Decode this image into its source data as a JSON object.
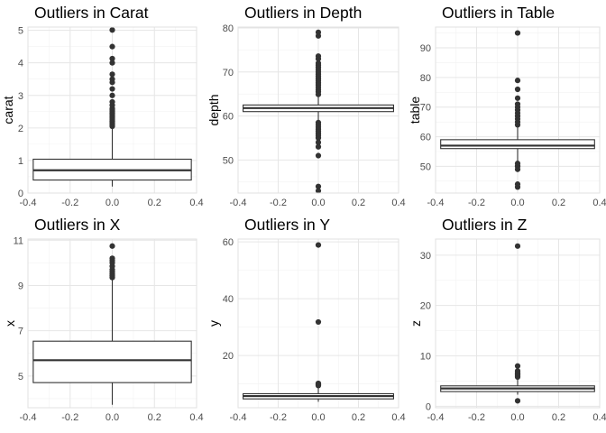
{
  "chart_data": [
    {
      "type": "boxplot",
      "title": "Outliers in Carat",
      "xlabel": "",
      "ylabel": "carat",
      "xlim": [
        -0.4,
        0.4
      ],
      "xticks": [
        -0.4,
        -0.2,
        0.0,
        0.2,
        0.4
      ],
      "xtick_labels": [
        "-0.4",
        "-0.2",
        "0.0",
        "0.2",
        "0.4"
      ],
      "ylim": [
        0,
        5.1
      ],
      "yticks": [
        0,
        1,
        2,
        3,
        4,
        5
      ],
      "ytick_labels": [
        "0",
        "1",
        "2",
        "3",
        "4",
        "5"
      ],
      "box": {
        "whisker_low": 0.2,
        "q1": 0.4,
        "median": 0.7,
        "q3": 1.04,
        "whisker_high": 2.0
      },
      "outliers": [
        2.05,
        2.1,
        2.15,
        2.2,
        2.25,
        2.3,
        2.35,
        2.4,
        2.45,
        2.5,
        2.55,
        2.6,
        2.7,
        2.8,
        3.0,
        3.2,
        3.4,
        3.5,
        3.65,
        4.0,
        4.13,
        4.5,
        5.01
      ],
      "grid": true
    },
    {
      "type": "boxplot",
      "title": "Outliers in Depth",
      "xlabel": "",
      "ylabel": "depth",
      "xlim": [
        -0.4,
        0.4
      ],
      "xticks": [
        -0.4,
        -0.2,
        0.0,
        0.2,
        0.4
      ],
      "xtick_labels": [
        "-0.4",
        "-0.2",
        "0.0",
        "0.2",
        "0.4"
      ],
      "ylim": [
        42.5,
        80.2
      ],
      "yticks": [
        50,
        60,
        70,
        80
      ],
      "ytick_labels": [
        "50",
        "60",
        "70",
        "80"
      ],
      "box": {
        "whisker_low": 58.8,
        "q1": 61.0,
        "median": 61.8,
        "q3": 62.5,
        "whisker_high": 64.7
      },
      "outliers": [
        43.0,
        44.0,
        51.0,
        53.0,
        54.0,
        55.0,
        55.5,
        56.0,
        56.5,
        57.0,
        57.5,
        58.0,
        58.5,
        64.9,
        65.5,
        66.0,
        66.5,
        67.0,
        67.5,
        68.0,
        68.5,
        69.0,
        69.5,
        70.0,
        70.5,
        71.0,
        71.5,
        72.0,
        73.0,
        73.6,
        78.2,
        79.0
      ],
      "grid": true
    },
    {
      "type": "boxplot",
      "title": "Outliers in Table",
      "xlabel": "",
      "ylabel": "table",
      "xlim": [
        -0.4,
        0.4
      ],
      "xticks": [
        -0.4,
        -0.2,
        0.0,
        0.2,
        0.4
      ],
      "xtick_labels": [
        "-0.4",
        "-0.2",
        "0.0",
        "0.2",
        "0.4"
      ],
      "ylim": [
        41,
        97
      ],
      "yticks": [
        50,
        60,
        70,
        80,
        90
      ],
      "ytick_labels": [
        "50",
        "60",
        "70",
        "80",
        "90"
      ],
      "box": {
        "whisker_low": 51.6,
        "q1": 56.0,
        "median": 57.0,
        "q3": 59.0,
        "whisker_high": 63.5
      },
      "outliers": [
        43.0,
        44.0,
        49.0,
        50.0,
        50.1,
        51.0,
        64.0,
        65.0,
        66.0,
        67.0,
        68.0,
        69.0,
        70.0,
        71.0,
        73.0,
        76.0,
        79.0,
        95.0
      ],
      "grid": true
    },
    {
      "type": "boxplot",
      "title": "Outliers in X",
      "xlabel": "",
      "ylabel": "x",
      "xlim": [
        -0.4,
        0.4
      ],
      "xticks": [
        -0.4,
        -0.2,
        0.0,
        0.2,
        0.4
      ],
      "xtick_labels": [
        "-0.4",
        "-0.2",
        "0.0",
        "0.2",
        "0.4"
      ],
      "ylim": [
        3.6,
        11.05
      ],
      "yticks": [
        5,
        7,
        9,
        11
      ],
      "ytick_labels": [
        "5",
        "7",
        "9",
        "11"
      ],
      "box": {
        "whisker_low": 3.73,
        "q1": 4.71,
        "median": 5.7,
        "q3": 6.54,
        "whisker_high": 9.28
      },
      "outliers": [
        9.35,
        9.42,
        9.5,
        9.6,
        9.7,
        9.85,
        10.0,
        10.1,
        10.2,
        10.74
      ],
      "grid": true
    },
    {
      "type": "boxplot",
      "title": "Outliers in Y",
      "xlabel": "",
      "ylabel": "y",
      "xlim": [
        -0.4,
        0.4
      ],
      "xticks": [
        -0.4,
        -0.2,
        0.0,
        0.2,
        0.4
      ],
      "xtick_labels": [
        "-0.4",
        "-0.2",
        "0.0",
        "0.2",
        "0.4"
      ],
      "ylim": [
        1.6,
        61
      ],
      "yticks": [
        20,
        40,
        60
      ],
      "ytick_labels": [
        "20",
        "40",
        "60"
      ],
      "box": {
        "whisker_low": 3.7,
        "q1": 4.72,
        "median": 5.71,
        "q3": 6.54,
        "whisker_high": 9.27
      },
      "outliers": [
        9.4,
        9.6,
        9.8,
        10.0,
        10.2,
        31.8,
        58.9
      ],
      "grid": true
    },
    {
      "type": "boxplot",
      "title": "Outliers in Z",
      "xlabel": "",
      "ylabel": "z",
      "xlim": [
        -0.4,
        0.4
      ],
      "xticks": [
        -0.4,
        -0.2,
        0.0,
        0.2,
        0.4
      ],
      "xtick_labels": [
        "-0.4",
        "-0.2",
        "0.0",
        "0.2",
        "0.4"
      ],
      "ylim": [
        -0.3,
        33.2
      ],
      "yticks": [
        0,
        10,
        20,
        30
      ],
      "ytick_labels": [
        "0",
        "10",
        "20",
        "30"
      ],
      "box": {
        "whisker_low": 2.3,
        "q1": 2.91,
        "median": 3.53,
        "q3": 4.04,
        "whisker_high": 5.7
      },
      "outliers": [
        1.07,
        5.8,
        6.0,
        6.2,
        6.4,
        6.6,
        7.0,
        8.0,
        31.8
      ],
      "grid": true
    }
  ],
  "colors": {
    "panel_background": "#ffffff",
    "panel_border": "#e0e0e0",
    "grid_major": "#e6e6e6",
    "grid_minor": "#f2f2f2",
    "box_line": "#333333",
    "outlier_point": "#333333",
    "tick_text": "#4d4d4d",
    "title_text": "#000000"
  }
}
